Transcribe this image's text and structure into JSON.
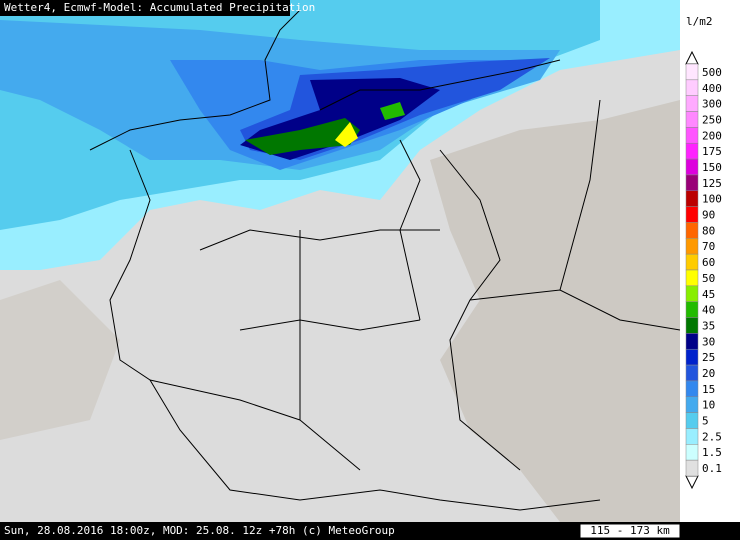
{
  "header": {
    "title": "Wetter4, Ecmwf-Model: Accumulated Precipitation"
  },
  "legend": {
    "unit": "l/m2",
    "items": [
      {
        "label": "500",
        "color": "#ffe6ff"
      },
      {
        "label": "400",
        "color": "#ffccff"
      },
      {
        "label": "300",
        "color": "#ffaaff"
      },
      {
        "label": "250",
        "color": "#ff88ff"
      },
      {
        "label": "200",
        "color": "#ff55ff"
      },
      {
        "label": "175",
        "color": "#ff22ff"
      },
      {
        "label": "150",
        "color": "#dd00dd"
      },
      {
        "label": "125",
        "color": "#990077"
      },
      {
        "label": "100",
        "color": "#bb0000"
      },
      {
        "label": "90",
        "color": "#ff0000"
      },
      {
        "label": "80",
        "color": "#ff6600"
      },
      {
        "label": "70",
        "color": "#ff9900"
      },
      {
        "label": "60",
        "color": "#ffcc00"
      },
      {
        "label": "50",
        "color": "#ffff00"
      },
      {
        "label": "45",
        "color": "#88ee00"
      },
      {
        "label": "40",
        "color": "#22bb00"
      },
      {
        "label": "35",
        "color": "#007700"
      },
      {
        "label": "30",
        "color": "#000088"
      },
      {
        "label": "25",
        "color": "#0022cc"
      },
      {
        "label": "20",
        "color": "#2255dd"
      },
      {
        "label": "15",
        "color": "#3388ee"
      },
      {
        "label": "10",
        "color": "#44aaee"
      },
      {
        "label": "5",
        "color": "#55ccee"
      },
      {
        "label": "2.5",
        "color": "#99eeff"
      },
      {
        "label": "1.5",
        "color": "#ccffff"
      },
      {
        "label": "0.1",
        "color": "#e0e0e0"
      }
    ]
  },
  "footer": {
    "text": "Sun, 28.08.2016 18:00z, MOD: 25.08. 12z +78h (c) MeteoGroup",
    "scale": "115 - 173 km"
  }
}
